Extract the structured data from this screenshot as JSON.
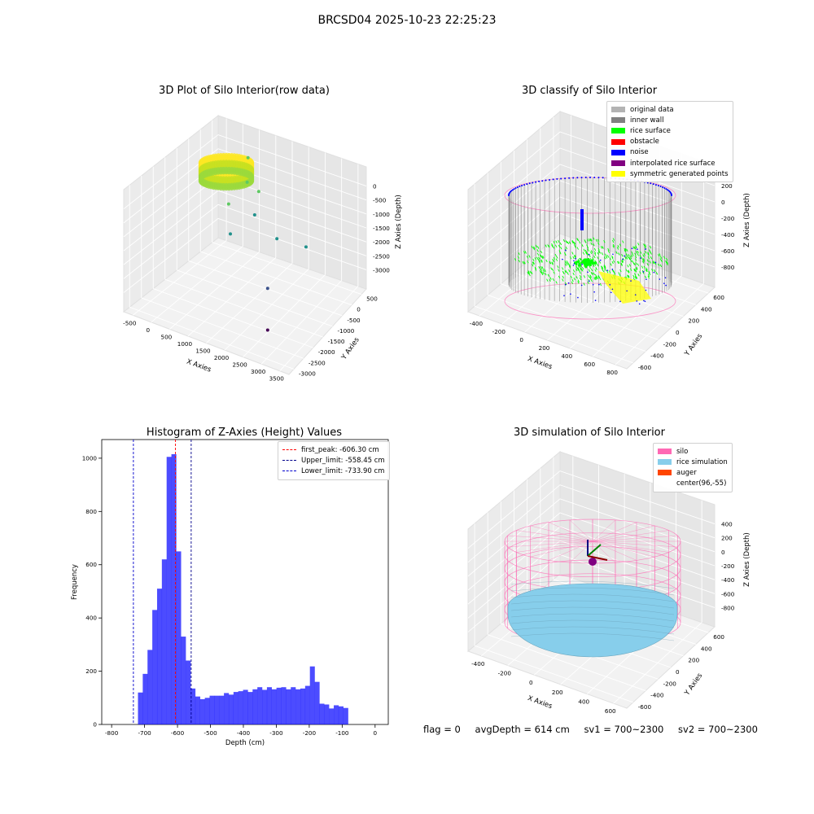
{
  "figure": {
    "title": "BRCSD04 2025-10-23 22:25:23"
  },
  "status": {
    "flag": "flag = 0",
    "avg_depth": "avgDepth = 614 cm",
    "sv1": "sv1 = 700~2300",
    "sv2": "sv2 = 700~2300"
  },
  "chart_data": [
    {
      "type": "scatter",
      "title": "3D Plot of Silo Interior(row data)",
      "xlabel": "X Axies",
      "ylabel": "Y Axies",
      "zlabel": "Z Axies (Depth)",
      "x_ticks": [
        "-500",
        "0",
        "500",
        "1000",
        "1500",
        "2000",
        "2500",
        "3000",
        "3500"
      ],
      "y_ticks": [
        "-3000",
        "-2500",
        "-2000",
        "-1500",
        "-1000",
        "-500",
        "0",
        "500"
      ],
      "z_ticks": [
        "-3000",
        "-2500",
        "-2000",
        "-1500",
        "-1000",
        "-500",
        "0"
      ],
      "colormap": [
        "#440154",
        "#3b528b",
        "#21918c",
        "#5ec962",
        "#fde725"
      ],
      "outliers": [
        {
          "x": 600,
          "y": 200,
          "z": -300
        },
        {
          "x": 900,
          "y": -300,
          "z": -600
        },
        {
          "x": 1100,
          "y": -100,
          "z": -900
        },
        {
          "x": 700,
          "y": -800,
          "z": -1000
        },
        {
          "x": 1300,
          "y": -600,
          "z": -1200
        },
        {
          "x": 1000,
          "y": -1200,
          "z": -1500
        },
        {
          "x": 1800,
          "y": -400,
          "z": -1800
        },
        {
          "x": 2500,
          "y": -200,
          "z": -1900
        },
        {
          "x": 2200,
          "y": -1500,
          "z": -2400
        },
        {
          "x": 2600,
          "y": -2200,
          "z": -3000
        }
      ]
    },
    {
      "type": "scatter",
      "title": "3D classify of Silo Interior",
      "xlabel": "X Axies",
      "ylabel": "Y Axies",
      "zlabel": "Z Axies (Depth)",
      "x_ticks": [
        "-400",
        "-200",
        "0",
        "200",
        "400",
        "600",
        "800"
      ],
      "y_ticks": [
        "-600",
        "-400",
        "-200",
        "0",
        "200",
        "400",
        "600"
      ],
      "z_ticks": [
        "-800",
        "-600",
        "-400",
        "-200",
        "0",
        "200"
      ],
      "legend": [
        {
          "label": "original data",
          "color": "#b3b3b3"
        },
        {
          "label": "inner wall",
          "color": "#808080"
        },
        {
          "label": "rice surface",
          "color": "#00ff00"
        },
        {
          "label": "obstacle",
          "color": "#ff0000"
        },
        {
          "label": "noise",
          "color": "#0000ff"
        },
        {
          "label": "interpolated rice surface",
          "color": "#800080"
        },
        {
          "label": "symmetric generated points",
          "color": "#ffff00"
        }
      ]
    },
    {
      "type": "bar",
      "title": "Histogram of Z-Axies (Height) Values",
      "xlabel": "Depth (cm)",
      "ylabel": "Frequency",
      "xlim": [
        -830,
        40
      ],
      "ylim": [
        0,
        1070
      ],
      "x_ticks": [
        -800,
        -700,
        -600,
        -500,
        -400,
        -300,
        -200,
        -100,
        0
      ],
      "y_ticks": [
        0,
        200,
        400,
        600,
        800,
        1000
      ],
      "bar_color": "#0000ff",
      "bin_start": -720,
      "bin_width": 14.5,
      "values": [
        120,
        190,
        280,
        430,
        510,
        620,
        1005,
        1015,
        650,
        330,
        240,
        135,
        105,
        95,
        100,
        108,
        108,
        108,
        118,
        112,
        122,
        125,
        130,
        122,
        132,
        140,
        130,
        140,
        132,
        138,
        140,
        132,
        140,
        132,
        135,
        145,
        218,
        160,
        78,
        75,
        60,
        72,
        68,
        62
      ],
      "lines": [
        {
          "label": "first_peak: -606.30 cm",
          "x": -606.3,
          "color": "#ff0000"
        },
        {
          "label": "Upper_limit: -558.45 cm",
          "x": -558.45,
          "color": "#00008b"
        },
        {
          "label": "Lower_limit: -733.90 cm",
          "x": -733.9,
          "color": "#0000cd"
        }
      ]
    },
    {
      "type": "scatter",
      "title": "3D simulation of Silo Interior",
      "xlabel": "X Axies",
      "ylabel": "Y Axies",
      "zlabel": "Z Axies (Depth)",
      "x_ticks": [
        "-400",
        "-200",
        "0",
        "200",
        "400",
        "600"
      ],
      "y_ticks": [
        "-600",
        "-400",
        "-200",
        "0",
        "200",
        "400",
        "600"
      ],
      "z_ticks": [
        "-800",
        "-600",
        "-400",
        "-200",
        "0",
        "200",
        "400"
      ],
      "legend": [
        {
          "label": "silo",
          "color": "#ff69b4"
        },
        {
          "label": "rice simulation",
          "color": "#87ceeb"
        },
        {
          "label": "auger",
          "color": "#ff4500"
        },
        {
          "label": "center(96,-55)",
          "color": ""
        }
      ]
    }
  ]
}
